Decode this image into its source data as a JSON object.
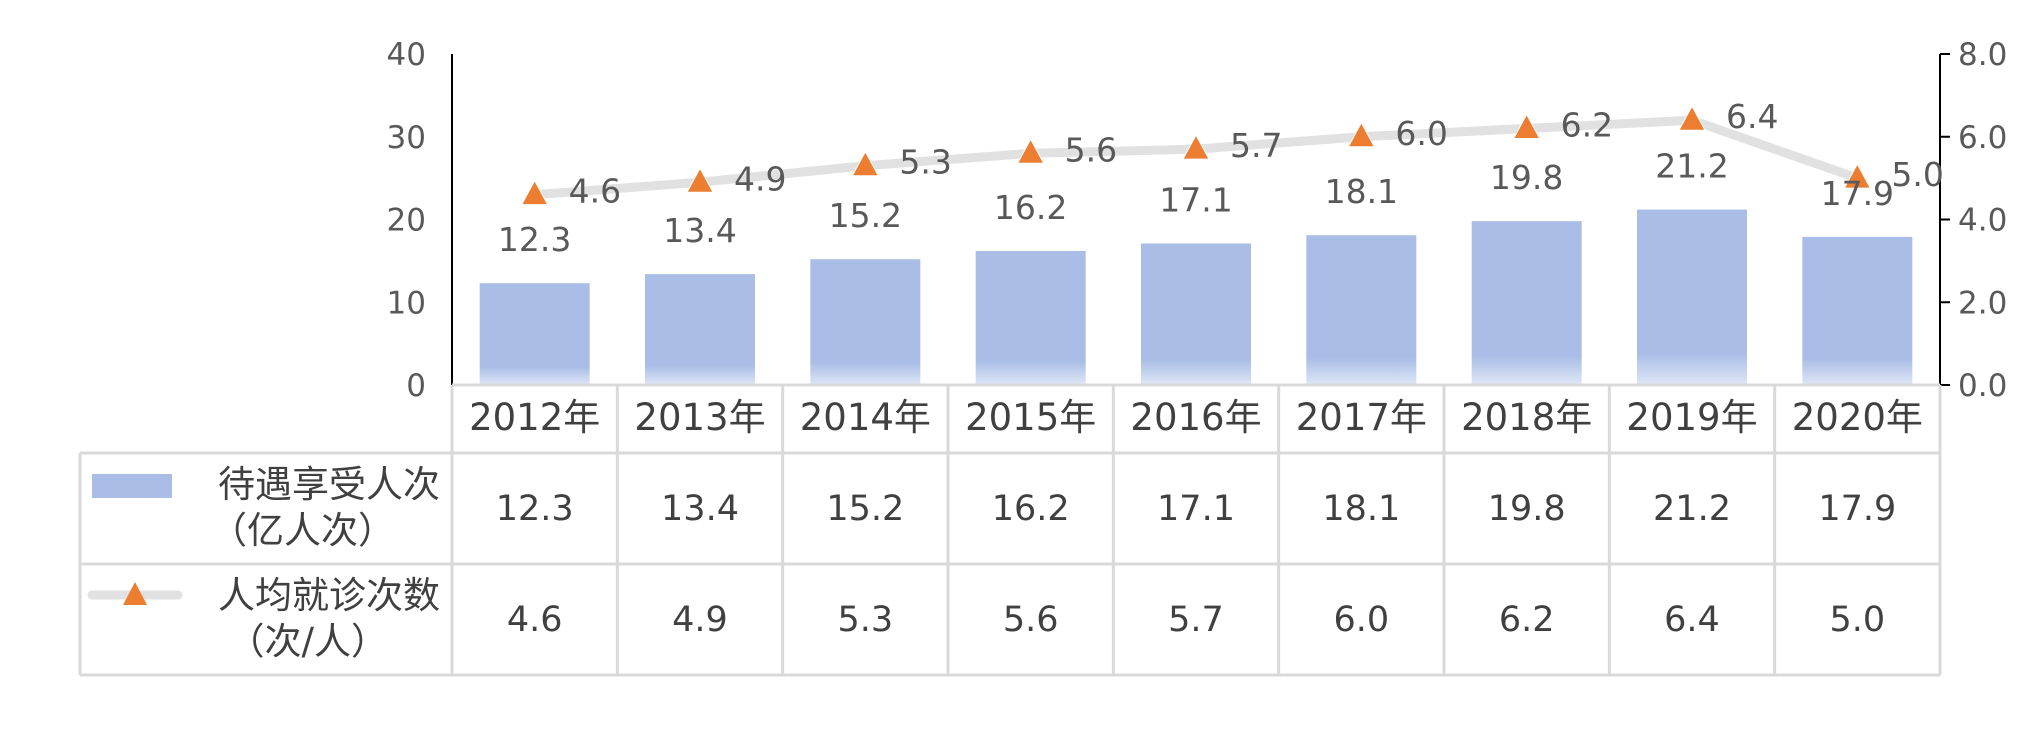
{
  "chart_data": {
    "type": "bar+line",
    "categories": [
      "2012年",
      "2013年",
      "2014年",
      "2015年",
      "2016年",
      "2017年",
      "2018年",
      "2019年",
      "2020年"
    ],
    "series": [
      {
        "name": "待遇享受人次",
        "unit": "（亿人次）",
        "type": "bar",
        "axis": "left",
        "color": "#a9bde6",
        "values": [
          12.3,
          13.4,
          15.2,
          16.2,
          17.1,
          18.1,
          19.8,
          21.2,
          17.9
        ],
        "value_labels": [
          "12.3",
          "13.4",
          "15.2",
          "16.2",
          "17.1",
          "18.1",
          "19.8",
          "21.2",
          "17.9"
        ]
      },
      {
        "name": "人均就诊次数",
        "unit": "（次/人）",
        "type": "line",
        "axis": "right",
        "color": "#e1e1e1",
        "marker": "triangle",
        "marker_color": "#ed7d31",
        "values": [
          4.6,
          4.9,
          5.3,
          5.6,
          5.7,
          6.0,
          6.2,
          6.4,
          5.0
        ],
        "value_labels": [
          "4.6",
          "4.9",
          "5.3",
          "5.6",
          "5.7",
          "6.0",
          "6.2",
          "6.4",
          "5.0"
        ]
      }
    ],
    "y_left": {
      "min": 0,
      "max": 40,
      "ticks": [
        "0",
        "10",
        "20",
        "30",
        "40"
      ]
    },
    "y_right": {
      "min": 0,
      "max": 8,
      "ticks": [
        "0.0",
        "2.0",
        "4.0",
        "6.0",
        "8.0"
      ]
    },
    "grid": false,
    "legend": "data-table"
  }
}
